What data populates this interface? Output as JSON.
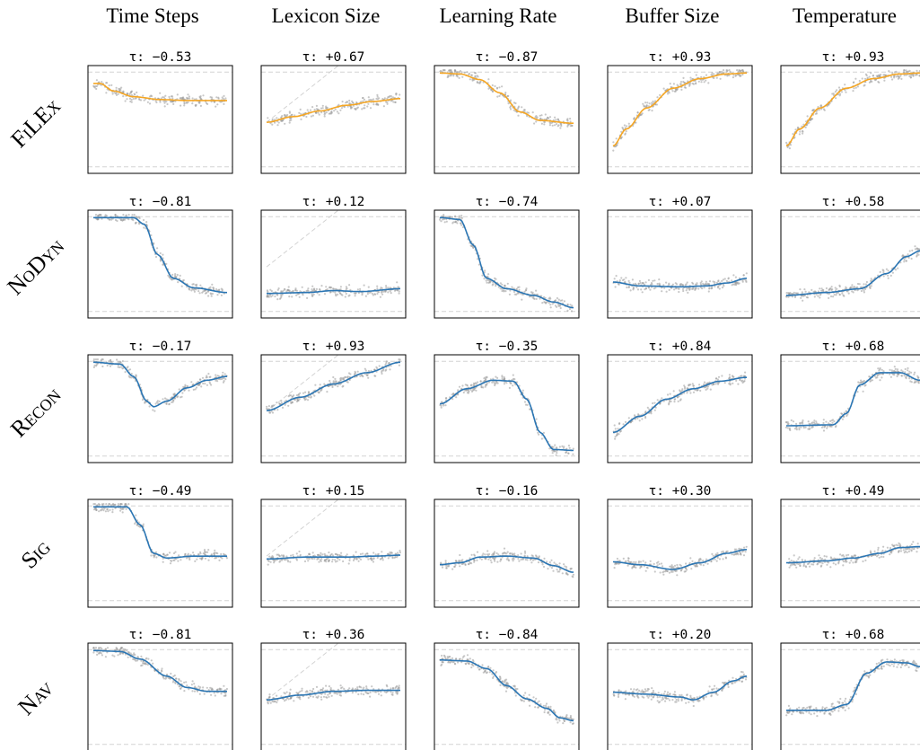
{
  "column_titles": [
    "Time Steps",
    "Lexicon Size",
    "Learning Rate",
    "Buffer Size",
    "Temperature"
  ],
  "row_labels": [
    "FiLEx",
    "NoDyn",
    "Recon",
    "Sig",
    "Nav"
  ],
  "colors": {
    "point": "#9a9a9a",
    "fit_orange": "#f5a623",
    "fit_blue": "#2b76b4",
    "reference_line": "#d3d3d3",
    "axis": "#000000"
  },
  "chart_data": [
    {
      "type": "scatter",
      "row": "FiLEx",
      "column": "Time Steps",
      "annotation": "τ: −0.53",
      "fit_color": "orange",
      "fit": [
        [
          0,
          0.88
        ],
        [
          0.05,
          0.88
        ],
        [
          0.15,
          0.8
        ],
        [
          0.3,
          0.74
        ],
        [
          0.5,
          0.71
        ],
        [
          0.7,
          0.7
        ],
        [
          1,
          0.7
        ]
      ],
      "diagonal": false
    },
    {
      "type": "scatter",
      "row": "FiLEx",
      "column": "Lexicon Size",
      "annotation": "τ: +0.67",
      "fit_color": "orange",
      "fit": [
        [
          0,
          0.47
        ],
        [
          0.2,
          0.53
        ],
        [
          0.4,
          0.59
        ],
        [
          0.6,
          0.65
        ],
        [
          0.8,
          0.69
        ],
        [
          1,
          0.72
        ]
      ],
      "diagonal": true
    },
    {
      "type": "scatter",
      "row": "FiLEx",
      "column": "Learning Rate",
      "annotation": "τ: −0.87",
      "fit_color": "orange",
      "fit": [
        [
          0,
          0.99
        ],
        [
          0.15,
          0.98
        ],
        [
          0.3,
          0.92
        ],
        [
          0.45,
          0.78
        ],
        [
          0.6,
          0.58
        ],
        [
          0.75,
          0.49
        ],
        [
          1,
          0.46
        ]
      ],
      "diagonal": false
    },
    {
      "type": "scatter",
      "row": "FiLEx",
      "column": "Buffer Size",
      "annotation": "τ: +0.93",
      "fit_color": "orange",
      "fit": [
        [
          0,
          0.22
        ],
        [
          0.1,
          0.4
        ],
        [
          0.25,
          0.62
        ],
        [
          0.45,
          0.83
        ],
        [
          0.65,
          0.93
        ],
        [
          0.85,
          0.98
        ],
        [
          1,
          0.99
        ]
      ],
      "diagonal": false
    },
    {
      "type": "scatter",
      "row": "FiLEx",
      "column": "Temperature",
      "annotation": "τ: +0.93",
      "fit_color": "orange",
      "fit": [
        [
          0,
          0.22
        ],
        [
          0.1,
          0.4
        ],
        [
          0.25,
          0.62
        ],
        [
          0.45,
          0.83
        ],
        [
          0.65,
          0.93
        ],
        [
          0.85,
          0.98
        ],
        [
          1,
          0.99
        ]
      ],
      "diagonal": false
    },
    {
      "type": "scatter",
      "row": "NoDyn",
      "column": "Time Steps",
      "annotation": "τ: −0.81",
      "fit_color": "blue",
      "fit": [
        [
          0,
          0.99
        ],
        [
          0.3,
          0.99
        ],
        [
          0.38,
          0.92
        ],
        [
          0.48,
          0.6
        ],
        [
          0.6,
          0.35
        ],
        [
          0.75,
          0.25
        ],
        [
          1,
          0.2
        ]
      ],
      "diagonal": false
    },
    {
      "type": "scatter",
      "row": "NoDyn",
      "column": "Lexicon Size",
      "annotation": "τ: +0.12",
      "fit_color": "blue",
      "fit": [
        [
          0,
          0.19
        ],
        [
          0.3,
          0.2
        ],
        [
          0.5,
          0.22
        ],
        [
          0.7,
          0.21
        ],
        [
          1,
          0.24
        ]
      ],
      "diagonal": true
    },
    {
      "type": "scatter",
      "row": "NoDyn",
      "column": "Learning Rate",
      "annotation": "τ: −0.74",
      "fit_color": "blue",
      "fit": [
        [
          0,
          0.99
        ],
        [
          0.15,
          0.97
        ],
        [
          0.25,
          0.7
        ],
        [
          0.35,
          0.35
        ],
        [
          0.5,
          0.24
        ],
        [
          0.7,
          0.17
        ],
        [
          0.85,
          0.1
        ],
        [
          1,
          0.04
        ]
      ],
      "diagonal": false
    },
    {
      "type": "scatter",
      "row": "NoDyn",
      "column": "Buffer Size",
      "annotation": "τ: +0.07",
      "fit_color": "blue",
      "fit": [
        [
          0,
          0.31
        ],
        [
          0.2,
          0.27
        ],
        [
          0.5,
          0.26
        ],
        [
          0.7,
          0.27
        ],
        [
          0.85,
          0.3
        ],
        [
          1,
          0.35
        ]
      ],
      "diagonal": false
    },
    {
      "type": "scatter",
      "row": "NoDyn",
      "column": "Temperature",
      "annotation": "τ: +0.58",
      "fit_color": "blue",
      "fit": [
        [
          0,
          0.17
        ],
        [
          0.3,
          0.2
        ],
        [
          0.55,
          0.24
        ],
        [
          0.75,
          0.4
        ],
        [
          0.9,
          0.58
        ],
        [
          1,
          0.64
        ]
      ],
      "diagonal": false
    },
    {
      "type": "scatter",
      "row": "Recon",
      "column": "Time Steps",
      "annotation": "τ: −0.17",
      "fit_color": "blue",
      "fit": [
        [
          0,
          0.99
        ],
        [
          0.2,
          0.97
        ],
        [
          0.3,
          0.84
        ],
        [
          0.4,
          0.58
        ],
        [
          0.45,
          0.52
        ],
        [
          0.55,
          0.58
        ],
        [
          0.7,
          0.72
        ],
        [
          0.85,
          0.8
        ],
        [
          1,
          0.84
        ]
      ],
      "diagonal": false
    },
    {
      "type": "scatter",
      "row": "Recon",
      "column": "Lexicon Size",
      "annotation": "τ: +0.93",
      "fit_color": "blue",
      "fit": [
        [
          0,
          0.48
        ],
        [
          0.25,
          0.62
        ],
        [
          0.5,
          0.76
        ],
        [
          0.75,
          0.88
        ],
        [
          1,
          0.99
        ]
      ],
      "diagonal": true
    },
    {
      "type": "scatter",
      "row": "Recon",
      "column": "Learning Rate",
      "annotation": "τ: −0.35",
      "fit_color": "blue",
      "fit": [
        [
          0,
          0.55
        ],
        [
          0.2,
          0.71
        ],
        [
          0.4,
          0.8
        ],
        [
          0.55,
          0.79
        ],
        [
          0.65,
          0.6
        ],
        [
          0.75,
          0.25
        ],
        [
          0.85,
          0.07
        ],
        [
          1,
          0.06
        ]
      ],
      "diagonal": false
    },
    {
      "type": "scatter",
      "row": "Recon",
      "column": "Buffer Size",
      "annotation": "τ: +0.84",
      "fit_color": "blue",
      "fit": [
        [
          0,
          0.25
        ],
        [
          0.2,
          0.42
        ],
        [
          0.4,
          0.6
        ],
        [
          0.6,
          0.71
        ],
        [
          0.8,
          0.79
        ],
        [
          1,
          0.83
        ]
      ],
      "diagonal": false
    },
    {
      "type": "scatter",
      "row": "Recon",
      "column": "Temperature",
      "annotation": "τ: +0.68",
      "fit_color": "blue",
      "fit": [
        [
          0,
          0.32
        ],
        [
          0.35,
          0.33
        ],
        [
          0.45,
          0.45
        ],
        [
          0.55,
          0.75
        ],
        [
          0.7,
          0.88
        ],
        [
          0.85,
          0.88
        ],
        [
          1,
          0.8
        ]
      ],
      "diagonal": false
    },
    {
      "type": "scatter",
      "row": "Sig",
      "column": "Time Steps",
      "annotation": "τ: −0.49",
      "fit_color": "blue",
      "fit": [
        [
          0,
          0.99
        ],
        [
          0.25,
          0.99
        ],
        [
          0.35,
          0.8
        ],
        [
          0.45,
          0.5
        ],
        [
          0.55,
          0.45
        ],
        [
          0.75,
          0.47
        ],
        [
          1,
          0.47
        ]
      ],
      "diagonal": false
    },
    {
      "type": "scatter",
      "row": "Sig",
      "column": "Lexicon Size",
      "annotation": "τ: +0.15",
      "fit_color": "blue",
      "fit": [
        [
          0,
          0.44
        ],
        [
          0.3,
          0.46
        ],
        [
          0.6,
          0.46
        ],
        [
          0.8,
          0.47
        ],
        [
          1,
          0.48
        ]
      ],
      "diagonal": true
    },
    {
      "type": "scatter",
      "row": "Sig",
      "column": "Learning Rate",
      "annotation": "τ: −0.16",
      "fit_color": "blue",
      "fit": [
        [
          0,
          0.38
        ],
        [
          0.15,
          0.4
        ],
        [
          0.3,
          0.46
        ],
        [
          0.5,
          0.47
        ],
        [
          0.7,
          0.45
        ],
        [
          0.85,
          0.37
        ],
        [
          1,
          0.3
        ]
      ],
      "diagonal": false
    },
    {
      "type": "scatter",
      "row": "Sig",
      "column": "Buffer Size",
      "annotation": "τ: +0.30",
      "fit_color": "blue",
      "fit": [
        [
          0,
          0.41
        ],
        [
          0.2,
          0.38
        ],
        [
          0.45,
          0.33
        ],
        [
          0.65,
          0.4
        ],
        [
          0.85,
          0.5
        ],
        [
          1,
          0.54
        ]
      ],
      "diagonal": false
    },
    {
      "type": "scatter",
      "row": "Sig",
      "column": "Temperature",
      "annotation": "τ: +0.49",
      "fit_color": "blue",
      "fit": [
        [
          0,
          0.4
        ],
        [
          0.3,
          0.42
        ],
        [
          0.5,
          0.45
        ],
        [
          0.7,
          0.5
        ],
        [
          0.85,
          0.56
        ],
        [
          1,
          0.57
        ]
      ],
      "diagonal": false
    },
    {
      "type": "scatter",
      "row": "Nav",
      "column": "Time Steps",
      "annotation": "τ: −0.81",
      "fit_color": "blue",
      "fit": [
        [
          0,
          0.99
        ],
        [
          0.2,
          0.98
        ],
        [
          0.35,
          0.9
        ],
        [
          0.55,
          0.72
        ],
        [
          0.7,
          0.6
        ],
        [
          0.85,
          0.56
        ],
        [
          1,
          0.56
        ]
      ],
      "diagonal": false
    },
    {
      "type": "scatter",
      "row": "Nav",
      "column": "Lexicon Size",
      "annotation": "τ: +0.36",
      "fit_color": "blue",
      "fit": [
        [
          0,
          0.47
        ],
        [
          0.25,
          0.52
        ],
        [
          0.5,
          0.56
        ],
        [
          0.75,
          0.57
        ],
        [
          1,
          0.57
        ]
      ],
      "diagonal": true
    },
    {
      "type": "scatter",
      "row": "Nav",
      "column": "Learning Rate",
      "annotation": "τ: −0.84",
      "fit_color": "blue",
      "fit": [
        [
          0,
          0.89
        ],
        [
          0.2,
          0.88
        ],
        [
          0.35,
          0.8
        ],
        [
          0.5,
          0.62
        ],
        [
          0.65,
          0.48
        ],
        [
          0.8,
          0.38
        ],
        [
          0.9,
          0.28
        ],
        [
          1,
          0.25
        ]
      ],
      "diagonal": false
    },
    {
      "type": "scatter",
      "row": "Nav",
      "column": "Buffer Size",
      "annotation": "τ: +0.20",
      "fit_color": "blue",
      "fit": [
        [
          0,
          0.55
        ],
        [
          0.25,
          0.53
        ],
        [
          0.5,
          0.5
        ],
        [
          0.6,
          0.47
        ],
        [
          0.75,
          0.55
        ],
        [
          0.9,
          0.67
        ],
        [
          1,
          0.72
        ]
      ],
      "diagonal": false
    },
    {
      "type": "scatter",
      "row": "Nav",
      "column": "Temperature",
      "annotation": "τ: +0.68",
      "fit_color": "blue",
      "fit": [
        [
          0,
          0.36
        ],
        [
          0.3,
          0.36
        ],
        [
          0.45,
          0.42
        ],
        [
          0.6,
          0.75
        ],
        [
          0.75,
          0.87
        ],
        [
          0.9,
          0.86
        ],
        [
          1,
          0.82
        ]
      ],
      "diagonal": false
    }
  ]
}
